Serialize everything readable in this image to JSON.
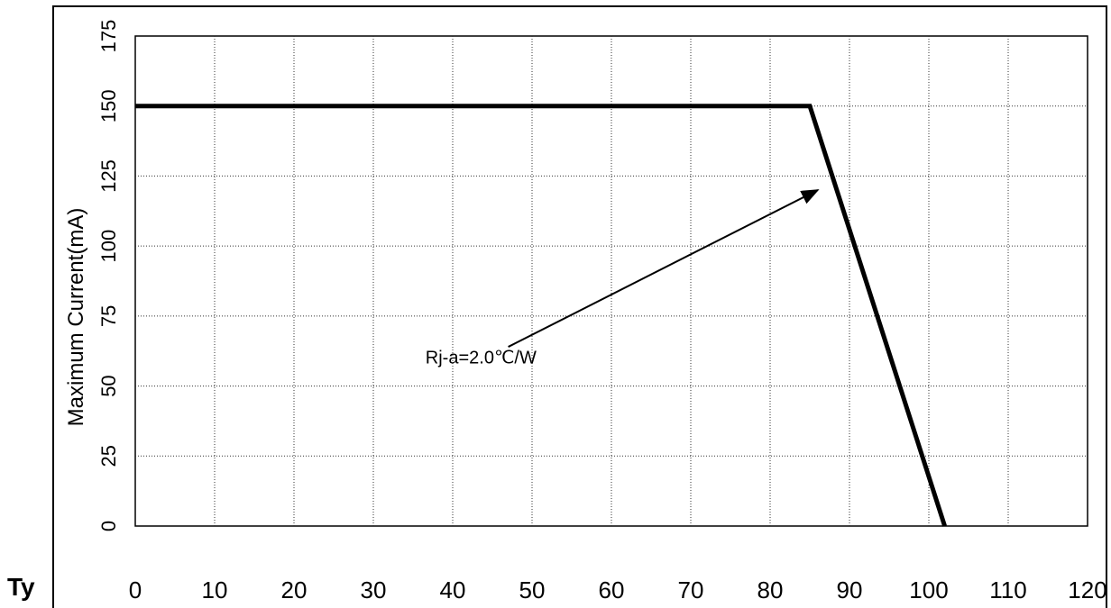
{
  "chart_data": {
    "type": "line",
    "ylabel": "Maximum Current(mA)",
    "xlabel": "",
    "x_ticks": [
      "0",
      "10",
      "20",
      "30",
      "40",
      "50",
      "60",
      "70",
      "80",
      "90",
      "100",
      "110",
      "120"
    ],
    "y_ticks": [
      "0",
      "25",
      "50",
      "75",
      "100",
      "125",
      "150",
      "175"
    ],
    "xlim": [
      0,
      120
    ],
    "ylim": [
      0,
      175
    ],
    "grid": true,
    "series": [
      {
        "x": [
          0,
          85,
          102
        ],
        "y": [
          150,
          150,
          0
        ],
        "color": "#000000"
      }
    ],
    "annotations": [
      {
        "text": "Rj-a=2.0℃/W",
        "anchor_x": 36,
        "anchor_y": 62,
        "arrow_to_x": 86,
        "arrow_to_y": 120
      }
    ]
  },
  "page": {
    "side_label": "Ty"
  }
}
